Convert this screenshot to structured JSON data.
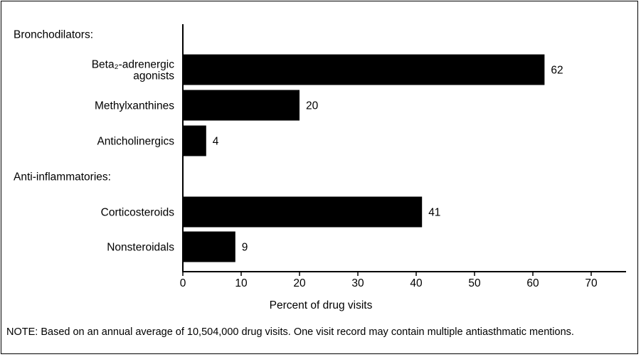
{
  "chart_data": {
    "type": "bar",
    "orientation": "horizontal",
    "groups": [
      {
        "heading": "Bronchodilators:",
        "categories": [
          {
            "label": "Beta₂-adrenergic agonists",
            "lines": [
              "Beta₂-adrenergic",
              "agonists"
            ],
            "value": 62,
            "value_label": "62"
          },
          {
            "label": "Methylxanthines",
            "lines": [
              "Methylxanthines"
            ],
            "value": 20,
            "value_label": "20"
          },
          {
            "label": "Anticholinergics",
            "lines": [
              "Anticholinergics"
            ],
            "value": 4,
            "value_label": "4"
          }
        ]
      },
      {
        "heading": "Anti-inflammatories:",
        "categories": [
          {
            "label": "Corticosteroids",
            "lines": [
              "Corticosteroids"
            ],
            "value": 41,
            "value_label": "41"
          },
          {
            "label": "Nonsteroidals",
            "lines": [
              "Nonsteroidals"
            ],
            "value": 9,
            "value_label": "9"
          }
        ]
      }
    ],
    "xlabel": "Percent of drug visits",
    "xlim": [
      0,
      76
    ],
    "xticks": [
      0,
      10,
      20,
      30,
      40,
      50,
      60,
      70
    ],
    "grid": false,
    "bar_color": "#000000"
  },
  "note": "NOTE: Based on an annual average of 10,504,000 drug visits. One visit record may contain multiple antiasthmatic mentions."
}
